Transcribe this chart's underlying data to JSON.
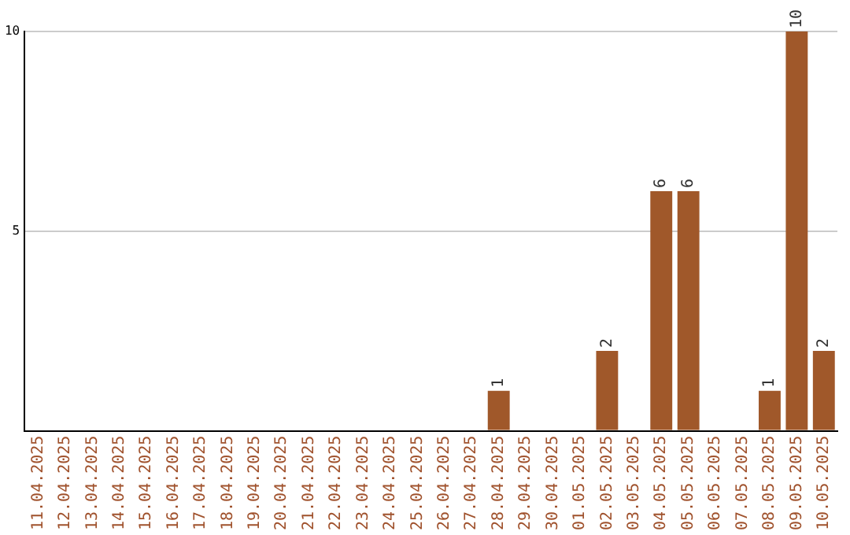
{
  "chart_data": {
    "type": "bar",
    "categories": [
      "11.04.2025",
      "12.04.2025",
      "13.04.2025",
      "14.04.2025",
      "15.04.2025",
      "16.04.2025",
      "17.04.2025",
      "18.04.2025",
      "19.04.2025",
      "20.04.2025",
      "21.04.2025",
      "22.04.2025",
      "23.04.2025",
      "24.04.2025",
      "25.04.2025",
      "26.04.2025",
      "27.04.2025",
      "28.04.2025",
      "29.04.2025",
      "30.04.2025",
      "01.05.2025",
      "02.05.2025",
      "03.05.2025",
      "04.05.2025",
      "05.05.2025",
      "06.05.2025",
      "07.05.2025",
      "08.05.2025",
      "09.05.2025",
      "10.05.2025"
    ],
    "values": [
      0,
      0,
      0,
      0,
      0,
      0,
      0,
      0,
      0,
      0,
      0,
      0,
      0,
      0,
      0,
      0,
      0,
      1,
      0,
      0,
      0,
      2,
      0,
      6,
      6,
      0,
      0,
      1,
      10,
      2
    ],
    "value_labels": [
      null,
      null,
      null,
      null,
      null,
      null,
      null,
      null,
      null,
      null,
      null,
      null,
      null,
      null,
      null,
      null,
      null,
      "1",
      null,
      null,
      null,
      "2",
      null,
      "6",
      "6",
      null,
      null,
      "1",
      "10",
      "2"
    ],
    "color": "#a0582a",
    "ylim": [
      0,
      10
    ],
    "yticks": [
      {
        "value": 0,
        "label": null
      },
      5,
      10
    ],
    "grid": "y",
    "legend": false
  }
}
